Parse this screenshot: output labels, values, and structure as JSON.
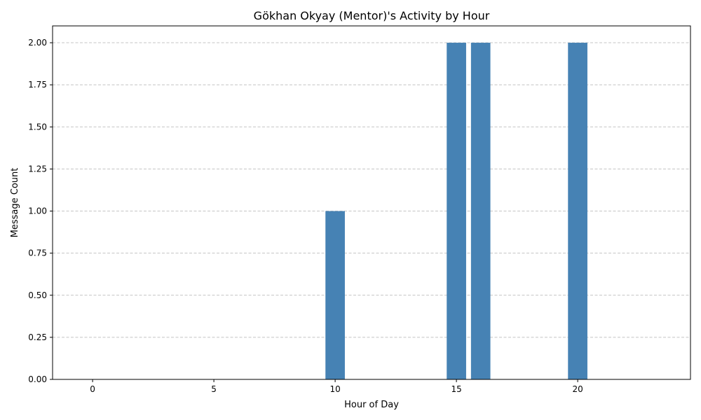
{
  "chart_data": {
    "type": "bar",
    "title": "Gökhan Okyay (Mentor)'s Activity by Hour",
    "xlabel": "Hour of Day",
    "ylabel": "Message Count",
    "x": [
      10,
      15,
      16,
      20
    ],
    "values": [
      1,
      2,
      2,
      2
    ],
    "bar_width": 0.8,
    "xlim": [
      -1.65,
      24.65
    ],
    "ylim": [
      0,
      2.1
    ],
    "xticks": [
      0,
      5,
      10,
      15,
      20
    ],
    "yticks": [
      0,
      0.25,
      0.5,
      0.75,
      1,
      1.25,
      1.5,
      1.75,
      2
    ],
    "ytick_labels": [
      "0.00",
      "0.25",
      "0.50",
      "0.75",
      "1.00",
      "1.25",
      "1.50",
      "1.75",
      "2.00"
    ],
    "grid": "y-dashed",
    "bar_color": "#4682b4"
  }
}
